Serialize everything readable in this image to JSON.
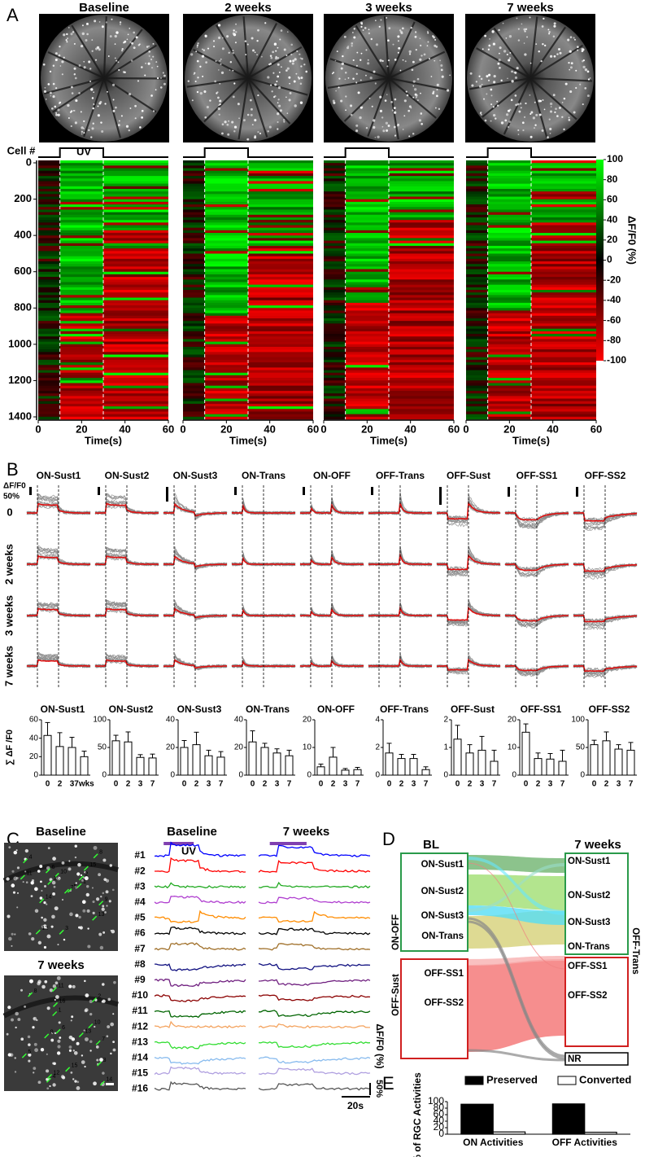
{
  "panel_letters": [
    "A",
    "B",
    "C",
    "D",
    "E"
  ],
  "panel_a": {
    "titles": [
      "Baseline",
      "2 weeks",
      "3 weeks",
      "7 weeks"
    ],
    "stimulus": "UV",
    "ylabel": "Cell #",
    "ylim": [
      0,
      1400
    ],
    "yticks": [
      0,
      200,
      400,
      600,
      800,
      1000,
      1200,
      1400
    ],
    "xlim": [
      0,
      60
    ],
    "xticks": [
      0,
      20,
      40,
      60
    ],
    "xlabel": "Time(s)",
    "colorbar": {
      "label": "ΔF/F0 (%)",
      "lim": [
        -100,
        100
      ],
      "ticks": [
        100,
        80,
        60,
        40,
        20,
        0,
        -20,
        -40,
        -60,
        -80,
        -100
      ]
    }
  },
  "panel_b": {
    "cell_types": [
      "ON-Sust1",
      "ON-Sust2",
      "ON-Sust3",
      "ON-Trans",
      "ON-OFF",
      "OFF-Trans",
      "OFF-Sust",
      "OFF-SS1",
      "OFF-SS2"
    ],
    "row_labels": [
      "0",
      "2 weeks",
      "3 weeks",
      "7 weeks"
    ],
    "scale_title": "ΔF/F0",
    "scale_value": "50%"
  },
  "chart_data": [
    {
      "type": "bar",
      "title": "ON-Sust1",
      "ylabel": "∑ ΔF /F0",
      "categories": [
        "0",
        "2",
        "3",
        "7wks"
      ],
      "values": [
        43,
        31,
        30,
        20
      ],
      "errors": [
        14,
        15,
        11,
        6
      ],
      "ylim": [
        0,
        60
      ],
      "yticks": [
        0,
        20,
        40,
        60
      ],
      "color": "#ffffff"
    },
    {
      "type": "bar",
      "title": "ON-Sust2",
      "categories": [
        "0",
        "2",
        "3",
        "7"
      ],
      "values": [
        62,
        60,
        32,
        31
      ],
      "errors": [
        10,
        18,
        5,
        7
      ],
      "ylim": [
        0,
        100
      ],
      "yticks": [
        0,
        50,
        100
      ],
      "color": "#ffffff"
    },
    {
      "type": "bar",
      "title": "ON-Sust3",
      "categories": [
        "0",
        "2",
        "3",
        "7"
      ],
      "values": [
        20,
        22,
        14,
        13
      ],
      "errors": [
        5,
        9,
        4,
        4
      ],
      "ylim": [
        0,
        40
      ],
      "yticks": [
        0,
        20,
        40
      ],
      "color": "#ffffff"
    },
    {
      "type": "bar",
      "title": "ON-Trans",
      "categories": [
        "0",
        "2",
        "3",
        "7"
      ],
      "values": [
        24,
        20,
        16,
        14
      ],
      "errors": [
        8,
        3,
        3,
        4
      ],
      "ylim": [
        0,
        40
      ],
      "yticks": [
        0,
        20,
        40
      ],
      "color": "#ffffff"
    },
    {
      "type": "bar",
      "title": "ON-OFF",
      "categories": [
        "0",
        "2",
        "3",
        "7"
      ],
      "values": [
        3,
        6.5,
        1.8,
        2
      ],
      "errors": [
        1,
        3.5,
        0.6,
        0.8
      ],
      "ylim": [
        0,
        20
      ],
      "yticks": [
        0,
        10,
        20
      ],
      "color": "#ffffff"
    },
    {
      "type": "bar",
      "title": "OFF-Trans",
      "categories": [
        "0",
        "2",
        "3",
        "7"
      ],
      "values": [
        1.6,
        1.2,
        1.2,
        0.4
      ],
      "errors": [
        0.7,
        0.3,
        0.3,
        0.2
      ],
      "ylim": [
        0,
        4
      ],
      "yticks": [
        0,
        2,
        4
      ],
      "color": "#ffffff"
    },
    {
      "type": "bar",
      "title": "OFF-Sust",
      "categories": [
        "0",
        "2",
        "3",
        "7"
      ],
      "values": [
        1.3,
        0.8,
        0.9,
        0.5
      ],
      "errors": [
        0.5,
        0.3,
        0.5,
        0.4
      ],
      "ylim": [
        0,
        2
      ],
      "yticks": [
        0,
        1,
        2
      ],
      "color": "#ffffff"
    },
    {
      "type": "bar",
      "title": "OFF-SS1",
      "categories": [
        "0",
        "2",
        "3",
        "7"
      ],
      "values": [
        15.5,
        6,
        5.8,
        5
      ],
      "errors": [
        3,
        2,
        2,
        4
      ],
      "ylim": [
        0,
        20
      ],
      "yticks": [
        0,
        10,
        20
      ],
      "color": "#ffffff"
    },
    {
      "type": "bar",
      "title": "OFF-SS2",
      "categories": [
        "0",
        "2",
        "3",
        "7"
      ],
      "values": [
        55,
        62,
        47,
        45
      ],
      "errors": [
        8,
        16,
        8,
        14
      ],
      "ylim": [
        0,
        100
      ],
      "yticks": [
        0,
        50,
        100
      ],
      "color": "#ffffff"
    },
    {
      "type": "bar",
      "ylabel": "% of RGC Activities",
      "categories": [
        "ON Activities",
        "OFF Activities"
      ],
      "series": [
        {
          "name": "Preserved",
          "color": "#000000",
          "values": [
            92,
            93
          ]
        },
        {
          "name": "Converted",
          "color": "#ffffff",
          "values": [
            7,
            6
          ]
        }
      ],
      "ylim": [
        0,
        100
      ],
      "yticks": [
        0,
        20,
        40,
        60,
        80,
        100
      ]
    }
  ],
  "panel_c": {
    "image_titles": [
      "Baseline",
      "7 weeks"
    ],
    "trace_titles": [
      "Baseline",
      "7 weeks"
    ],
    "stimulus": "UV",
    "roi_labels": [
      "1",
      "2",
      "3",
      "4",
      "5",
      "6",
      "7",
      "8",
      "9",
      "10",
      "11",
      "12",
      "13",
      "14",
      "15",
      "16"
    ],
    "cells": [
      {
        "label": "#1",
        "color": "#0000ff"
      },
      {
        "label": "#2",
        "color": "#ff0000"
      },
      {
        "label": "#3",
        "color": "#22aa22"
      },
      {
        "label": "#4",
        "color": "#b040d0"
      },
      {
        "label": "#5",
        "color": "#ff8c00"
      },
      {
        "label": "#6",
        "color": "#000000"
      },
      {
        "label": "#7",
        "color": "#a0702a"
      },
      {
        "label": "#8",
        "color": "#101080"
      },
      {
        "label": "#9",
        "color": "#702080"
      },
      {
        "label": "#10",
        "color": "#8b0000"
      },
      {
        "label": "#11",
        "color": "#006400"
      },
      {
        "label": "#12",
        "color": "#f4a460"
      },
      {
        "label": "#13",
        "color": "#33dd33"
      },
      {
        "label": "#14",
        "color": "#88bbee"
      },
      {
        "label": "#15",
        "color": "#b0a0e0"
      },
      {
        "label": "#16",
        "color": "#555555"
      }
    ],
    "ylabel": "ΔF/F0 (%)",
    "scale_y": "50%",
    "scale_x": "20s"
  },
  "panel_d": {
    "left_title": "BL",
    "right_title": "7 weeks",
    "left_labels": [
      "ON-Sust1",
      "ON-Sust2",
      "ON-Sust3",
      "ON-Trans",
      "OFF-SS1",
      "OFF-SS2"
    ],
    "right_labels": [
      "ON-Sust1",
      "ON-Sust2",
      "ON-Sust3",
      "ON-Trans",
      "OFF-SS1",
      "OFF-SS2",
      "NR"
    ],
    "left_side_labels": [
      "ON-OFF",
      "OFF-Sust"
    ],
    "right_side_label": "OFF-Trans"
  }
}
